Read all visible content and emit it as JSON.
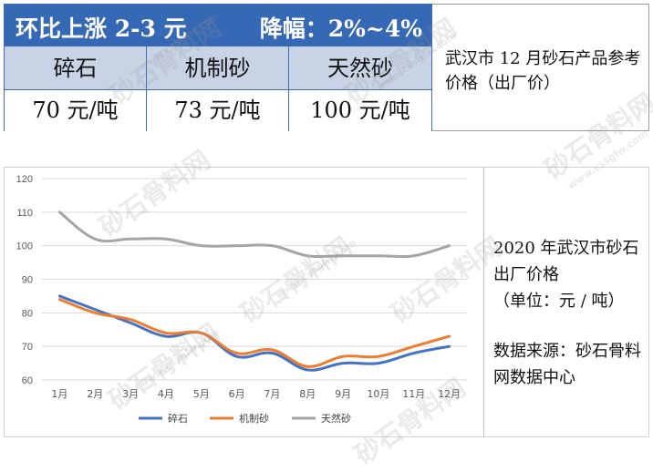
{
  "banner": {
    "left": "环比上涨 2-3 元",
    "right": "降幅：2%~4%"
  },
  "price_table": {
    "headers": [
      "碎石",
      "机制砂",
      "天然砂"
    ],
    "values": [
      "70 元/吨",
      "73 元/吨",
      "100 元/吨"
    ]
  },
  "side_note_top": "武汉市 12 月砂石产品参考价格（出厂价）",
  "side_note_bottom": {
    "title": "2020 年武汉市砂石出厂价格",
    "unit": "（单位：元 / 吨）",
    "source": "数据来源：砂石骨料网数据中心"
  },
  "watermarks": {
    "cn": "砂石骨料网",
    "url": "www.cssglw.com"
  },
  "colors": {
    "banner": "#3568b5",
    "header_row": "#c8d4e6",
    "grid": "#d9d9d9"
  },
  "chart_data": {
    "type": "line",
    "title": "",
    "xlabel": "",
    "ylabel": "",
    "categories": [
      "1月",
      "2月",
      "3月",
      "4月",
      "5月",
      "6月",
      "7月",
      "8月",
      "9月",
      "10月",
      "11月",
      "12月"
    ],
    "ylim": [
      60,
      120
    ],
    "yticks": [
      60,
      70,
      80,
      90,
      100,
      110,
      120
    ],
    "grid": true,
    "legend": "bottom",
    "series": [
      {
        "name": "碎石",
        "color": "#4472c4",
        "values": [
          85,
          81,
          77,
          73,
          74,
          67,
          68,
          63,
          65,
          65,
          68,
          70
        ]
      },
      {
        "name": "机制砂",
        "color": "#ed7d31",
        "values": [
          84,
          80,
          78,
          74,
          74,
          68,
          69,
          64,
          67,
          67,
          70,
          73
        ]
      },
      {
        "name": "天然砂",
        "color": "#a5a5a5",
        "values": [
          110,
          102,
          102,
          102,
          100,
          100,
          100,
          97,
          97,
          97,
          97,
          100
        ]
      }
    ]
  }
}
